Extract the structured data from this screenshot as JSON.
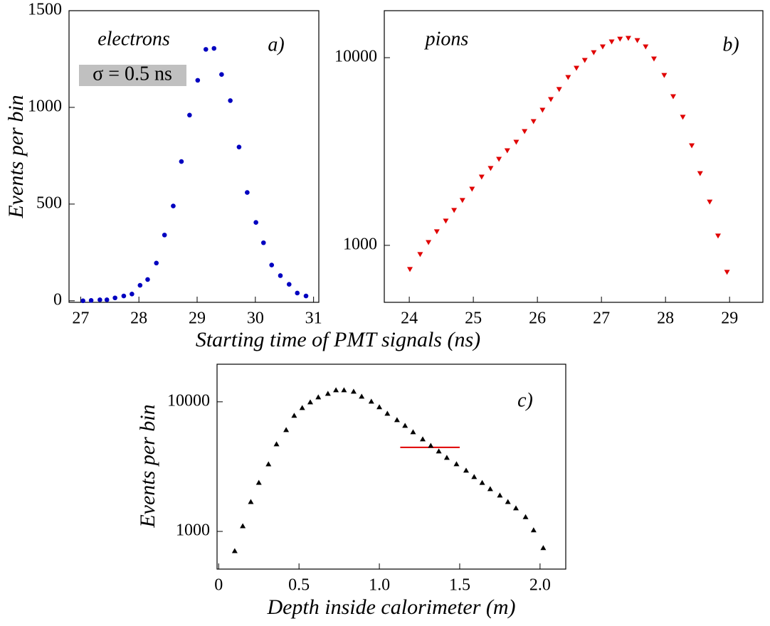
{
  "chart_data": [
    {
      "type": "scatter",
      "ylabel": "Events per bin",
      "xlabel": "Starting time of PMT signals (ns)",
      "xlim": [
        26.8,
        31.09
      ],
      "ylim": [
        -8,
        1500
      ],
      "xticks": [
        27,
        28,
        29,
        30,
        31
      ],
      "yticks": [
        0,
        500,
        1000,
        1500
      ],
      "log_y": false,
      "marker": "circle",
      "annotations": [
        {
          "text": "electrons",
          "color": "#0000c8"
        },
        {
          "text": "σ = 0.5 ns",
          "color": "#000080",
          "background": "#c0c0c0"
        },
        {
          "text": "a)",
          "color": "#000000"
        }
      ],
      "series": [
        {
          "color": "#0000c0",
          "x": [
            27.04,
            27.18,
            27.33,
            27.45,
            27.59,
            27.74,
            27.88,
            28.02,
            28.15,
            28.3,
            28.44,
            28.59,
            28.73,
            28.87,
            29.01,
            29.15,
            29.29,
            29.42,
            29.57,
            29.72,
            29.86,
            30.01,
            30.14,
            30.28,
            30.43,
            30.58,
            30.72,
            30.87
          ],
          "values": [
            0,
            2,
            5,
            5,
            15,
            25,
            35,
            80,
            110,
            195,
            340,
            490,
            720,
            960,
            1140,
            1300,
            1305,
            1170,
            1035,
            795,
            560,
            405,
            300,
            185,
            130,
            85,
            40,
            25
          ]
        }
      ]
    },
    {
      "type": "scatter",
      "xlim": [
        23.61,
        29.52
      ],
      "ylim": [
        497,
        17800
      ],
      "xticks": [
        24,
        25,
        26,
        27,
        28,
        29
      ],
      "yticks": [
        1000,
        10000
      ],
      "log_y": true,
      "marker": "triangle-down",
      "annotations": [
        {
          "text": "pions",
          "color": "#e00000"
        },
        {
          "text": "b)",
          "color": "#000000"
        }
      ],
      "series": [
        {
          "color": "#e00000",
          "x": [
            24.01,
            24.17,
            24.3,
            24.43,
            24.57,
            24.7,
            24.83,
            24.98,
            25.13,
            25.27,
            25.4,
            25.53,
            25.67,
            25.8,
            25.94,
            26.08,
            26.21,
            26.34,
            26.48,
            26.61,
            26.74,
            26.88,
            27.02,
            27.16,
            27.29,
            27.42,
            27.56,
            27.69,
            27.82,
            27.98,
            28.12,
            28.27,
            28.41,
            28.54,
            28.69,
            28.82,
            28.96
          ],
          "values": [
            743,
            893,
            1035,
            1180,
            1345,
            1534,
            1733,
            1991,
            2310,
            2566,
            2873,
            3190,
            3542,
            4036,
            4560,
            5248,
            5980,
            6761,
            7834,
            8775,
            9660,
            10630,
            11400,
            12120,
            12540,
            12660,
            12330,
            11400,
            9830,
            8040,
            6190,
            4810,
            3390,
            2410,
            1700,
            1120,
            718
          ]
        }
      ]
    },
    {
      "type": "scatter",
      "ylabel": "Events per bin",
      "xlabel": "Depth inside calorimeter (m)",
      "xlim": [
        -0.01,
        2.16
      ],
      "ylim": [
        512,
        19500
      ],
      "xticks": [
        0,
        0.5,
        {
          "value": 1,
          "label": "1.0"
        },
        1.5,
        {
          "value": 2,
          "label": "2.0"
        }
      ],
      "yticks": [
        1000,
        10000
      ],
      "log_y": true,
      "marker": "triangle-up",
      "annotations": [
        {
          "text": "c)",
          "color": "#000000"
        }
      ],
      "reference_line": {
        "color": "#e00000",
        "value": 4450,
        "x": [
          1.13,
          1.5
        ]
      },
      "series": [
        {
          "color": "#000000",
          "x": [
            0.1,
            0.15,
            0.2,
            0.25,
            0.31,
            0.36,
            0.42,
            0.47,
            0.52,
            0.57,
            0.62,
            0.68,
            0.73,
            0.78,
            0.84,
            0.89,
            0.95,
            1.0,
            1.05,
            1.11,
            1.16,
            1.21,
            1.27,
            1.32,
            1.37,
            1.42,
            1.48,
            1.54,
            1.59,
            1.64,
            1.69,
            1.75,
            1.8,
            1.85,
            1.91,
            1.96,
            2.02
          ],
          "values": [
            711,
            1107,
            1702,
            2393,
            3324,
            4742,
            6109,
            7870,
            9040,
            10000,
            10920,
            11640,
            12390,
            12390,
            12090,
            11060,
            10130,
            9160,
            8170,
            7290,
            6590,
            5880,
            5180,
            4620,
            4180,
            3730,
            3330,
            2970,
            2650,
            2390,
            2140,
            1910,
            1700,
            1520,
            1300,
            1030,
            750
          ]
        }
      ]
    }
  ]
}
